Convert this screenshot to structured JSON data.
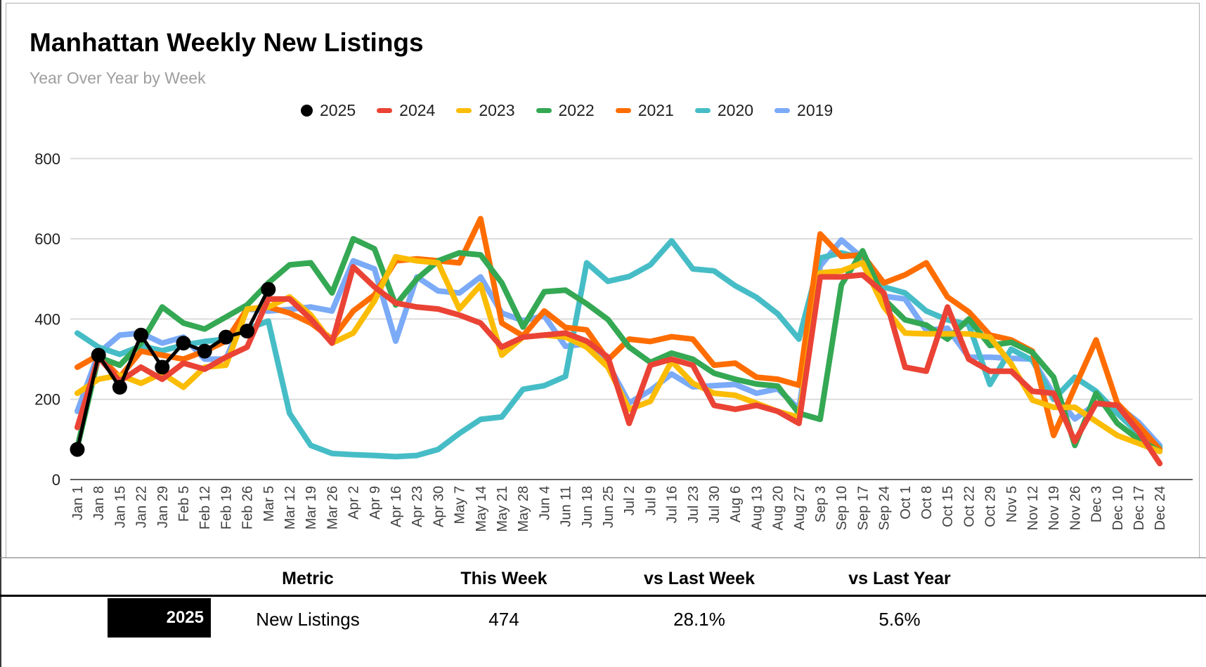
{
  "page": {
    "title": "Manhattan Weekly New Listings",
    "subtitle": "Year Over Year by Week"
  },
  "legend": [
    {
      "label": "2025",
      "color": "#000000",
      "marker": "circle"
    },
    {
      "label": "2024",
      "color": "#EA4335",
      "marker": "dash"
    },
    {
      "label": "2023",
      "color": "#FBBC04",
      "marker": "dash"
    },
    {
      "label": "2022",
      "color": "#34A853",
      "marker": "dash"
    },
    {
      "label": "2021",
      "color": "#FF6D01",
      "marker": "dash"
    },
    {
      "label": "2020",
      "color": "#46BDC6",
      "marker": "dash"
    },
    {
      "label": "2019",
      "color": "#7BAAF7",
      "marker": "dash"
    }
  ],
  "chart_data": {
    "type": "line",
    "title": "Manhattan Weekly New Listings",
    "subtitle": "Year Over Year by Week",
    "xlabel": "",
    "ylabel": "",
    "ylim": [
      0,
      800
    ],
    "yticks": [
      0,
      200,
      400,
      600,
      800
    ],
    "grid": true,
    "legend_position": "top",
    "x": [
      "Jan 1",
      "Jan 8",
      "Jan 15",
      "Jan 22",
      "Jan 29",
      "Feb 5",
      "Feb 12",
      "Feb 19",
      "Feb 26",
      "Mar 5",
      "Mar 12",
      "Mar 19",
      "Mar 26",
      "Apr 2",
      "Apr 9",
      "Apr 16",
      "Apr 23",
      "Apr 30",
      "May 7",
      "May 14",
      "May 21",
      "May 28",
      "Jun 4",
      "Jun 11",
      "Jun 18",
      "Jun 25",
      "Jul 2",
      "Jul 9",
      "Jul 16",
      "Jul 23",
      "Jul 30",
      "Aug 6",
      "Aug 13",
      "Aug 20",
      "Aug 27",
      "Sep 3",
      "Sep 10",
      "Sep 17",
      "Sep 24",
      "Oct 1",
      "Oct 8",
      "Oct 15",
      "Oct 22",
      "Oct 29",
      "Nov 5",
      "Nov 12",
      "Nov 19",
      "Nov 26",
      "Dec 3",
      "Dec 10",
      "Dec 17",
      "Dec 24"
    ],
    "series": [
      {
        "name": "2019",
        "color": "#7BAAF7",
        "point_markers": false,
        "values": [
          170,
          315,
          360,
          365,
          340,
          355,
          300,
          300,
          425,
          420,
          424,
          430,
          420,
          545,
          525,
          345,
          505,
          470,
          465,
          505,
          415,
          396,
          408,
          332,
          338,
          289,
          191,
          222,
          263,
          231,
          234,
          237,
          215,
          226,
          176,
          532,
          597,
          552,
          457,
          450,
          372,
          377,
          305,
          305,
          302,
          300,
          213,
          151,
          189,
          184,
          143,
          85
        ]
      },
      {
        "name": "2020",
        "color": "#46BDC6",
        "point_markers": false,
        "values": [
          365,
          330,
          312,
          333,
          321,
          335,
          344,
          350,
          375,
          395,
          165,
          85,
          65,
          62,
          60,
          57,
          60,
          75,
          115,
          150,
          156,
          225,
          234,
          257,
          540,
          494,
          506,
          535,
          595,
          525,
          520,
          483,
          454,
          413,
          350,
          552,
          565,
          552,
          480,
          465,
          420,
          398,
          386,
          237,
          325,
          297,
          200,
          255,
          220,
          165,
          115,
          80
        ]
      },
      {
        "name": "2021",
        "color": "#FF6D01",
        "point_markers": false,
        "values": [
          280,
          310,
          255,
          320,
          310,
          300,
          320,
          345,
          425,
          430,
          415,
          390,
          350,
          420,
          460,
          545,
          550,
          545,
          540,
          650,
          390,
          358,
          420,
          379,
          373,
          298,
          350,
          344,
          356,
          350,
          285,
          290,
          255,
          250,
          235,
          612,
          556,
          560,
          490,
          510,
          540,
          455,
          418,
          360,
          348,
          320,
          110,
          230,
          348,
          190,
          135,
          75
        ]
      },
      {
        "name": "2022",
        "color": "#34A853",
        "point_markers": false,
        "values": [
          80,
          305,
          285,
          340,
          430,
          390,
          375,
          405,
          435,
          490,
          535,
          540,
          465,
          600,
          575,
          435,
          500,
          545,
          565,
          560,
          490,
          380,
          468,
          472,
          438,
          399,
          330,
          292,
          315,
          300,
          265,
          250,
          238,
          233,
          165,
          150,
          485,
          570,
          450,
          398,
          385,
          350,
          400,
          334,
          342,
          317,
          255,
          85,
          215,
          140,
          100,
          70
        ]
      },
      {
        "name": "2023",
        "color": "#FBBC04",
        "point_markers": false,
        "values": [
          215,
          250,
          260,
          240,
          265,
          230,
          280,
          285,
          425,
          430,
          455,
          410,
          340,
          365,
          445,
          555,
          545,
          540,
          425,
          485,
          310,
          355,
          360,
          355,
          330,
          280,
          175,
          195,
          295,
          240,
          215,
          210,
          190,
          170,
          155,
          515,
          520,
          540,
          430,
          365,
          363,
          363,
          363,
          355,
          288,
          198,
          180,
          180,
          145,
          110,
          90,
          70
        ]
      },
      {
        "name": "2024",
        "color": "#EA4335",
        "point_markers": false,
        "values": [
          130,
          305,
          245,
          280,
          250,
          290,
          275,
          305,
          330,
          450,
          450,
          400,
          340,
          530,
          480,
          440,
          430,
          425,
          410,
          390,
          330,
          355,
          360,
          365,
          345,
          305,
          140,
          285,
          300,
          285,
          185,
          175,
          185,
          170,
          140,
          505,
          505,
          510,
          465,
          280,
          270,
          430,
          300,
          270,
          270,
          220,
          215,
          95,
          190,
          185,
          120,
          40
        ]
      },
      {
        "name": "2025",
        "color": "#000000",
        "point_markers": true,
        "values": [
          75,
          310,
          230,
          360,
          280,
          340,
          320,
          355,
          370,
          474,
          null,
          null,
          null,
          null,
          null,
          null,
          null,
          null,
          null,
          null,
          null,
          null,
          null,
          null,
          null,
          null,
          null,
          null,
          null,
          null,
          null,
          null,
          null,
          null,
          null,
          null,
          null,
          null,
          null,
          null,
          null,
          null,
          null,
          null,
          null,
          null,
          null,
          null,
          null,
          null,
          null,
          null
        ]
      }
    ]
  },
  "table": {
    "headers": [
      "Metric",
      "This Week",
      "vs Last Week",
      "vs Last Year"
    ],
    "row": {
      "year": "2025",
      "year_bg": "#000000",
      "metric": "New Listings",
      "this_week": "474",
      "vs_last_week": "28.1%",
      "vs_last_year": "5.6%"
    }
  }
}
